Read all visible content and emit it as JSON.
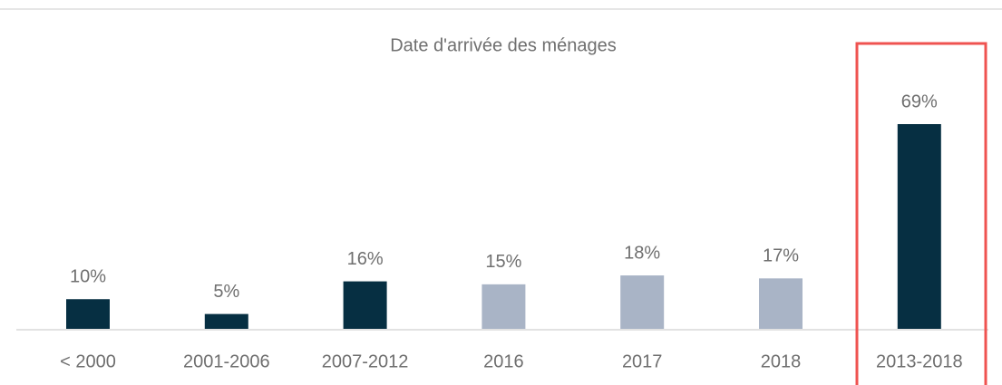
{
  "chart_data": {
    "type": "bar",
    "title": "Date d'arrivée des ménages",
    "categories": [
      "< 2000",
      "2001-2006",
      "2007-2012",
      "2016",
      "2017",
      "2018",
      "2013-2018"
    ],
    "values": [
      10,
      5,
      16,
      15,
      18,
      17,
      69
    ],
    "value_labels": [
      "10%",
      "5%",
      "16%",
      "15%",
      "18%",
      "17%",
      "69%"
    ],
    "colors": [
      "#062f42",
      "#062f42",
      "#062f42",
      "#a9b4c6",
      "#a9b4c6",
      "#a9b4c6",
      "#062f42"
    ]
  }
}
